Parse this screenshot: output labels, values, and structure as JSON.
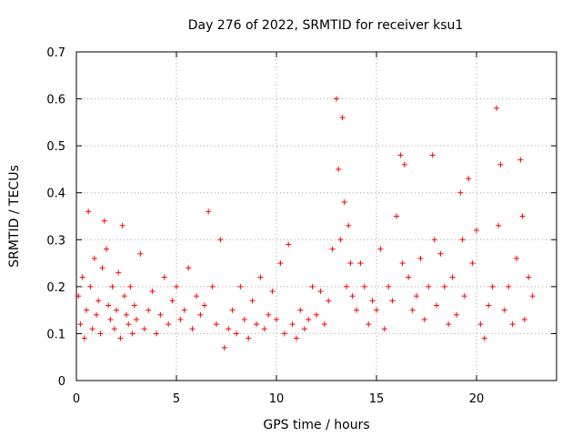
{
  "chart_data": {
    "type": "scatter",
    "title": "Day 276 of 2022, SRMTID for receiver ksu1",
    "xlabel": "GPS time / hours",
    "ylabel": "SRMTID / TECUs",
    "xlim": [
      0,
      24
    ],
    "ylim": [
      0,
      0.7
    ],
    "xticks": [
      0,
      5,
      10,
      15,
      20
    ],
    "xtick_labels": [
      "0",
      "5",
      "10",
      "15",
      "20"
    ],
    "yticks": [
      0,
      0.1,
      0.2,
      0.3,
      0.4,
      0.5,
      0.6,
      0.7
    ],
    "ytick_labels": [
      "0",
      "0.1",
      "0.2",
      "0.3",
      "0.4",
      "0.5",
      "0.6",
      "0.7"
    ],
    "grid": true,
    "marker": "+",
    "color": "#ff0000",
    "series": [
      {
        "name": "SRMTID",
        "x": [
          0.1,
          0.2,
          0.3,
          0.4,
          0.5,
          0.6,
          0.7,
          0.8,
          0.9,
          1.0,
          1.1,
          1.2,
          1.3,
          1.4,
          1.5,
          1.6,
          1.7,
          1.8,
          1.9,
          2.0,
          2.1,
          2.2,
          2.3,
          2.4,
          2.5,
          2.6,
          2.7,
          2.8,
          2.9,
          3.0,
          3.2,
          3.4,
          3.6,
          3.8,
          4.0,
          4.2,
          4.4,
          4.6,
          4.8,
          5.0,
          5.2,
          5.4,
          5.6,
          5.8,
          6.0,
          6.2,
          6.4,
          6.6,
          6.8,
          7.0,
          7.2,
          7.4,
          7.6,
          7.8,
          8.0,
          8.2,
          8.4,
          8.6,
          8.8,
          9.0,
          9.2,
          9.4,
          9.6,
          9.8,
          10.0,
          10.2,
          10.4,
          10.6,
          10.8,
          11.0,
          11.2,
          11.4,
          11.6,
          11.8,
          12.0,
          12.2,
          12.4,
          12.6,
          12.8,
          13.0,
          13.1,
          13.2,
          13.3,
          13.4,
          13.5,
          13.6,
          13.7,
          13.8,
          14.0,
          14.2,
          14.4,
          14.6,
          14.8,
          15.0,
          15.2,
          15.4,
          15.6,
          15.8,
          16.0,
          16.2,
          16.3,
          16.4,
          16.6,
          16.8,
          17.0,
          17.2,
          17.4,
          17.6,
          17.8,
          17.9,
          18.0,
          18.2,
          18.4,
          18.6,
          18.8,
          19.0,
          19.2,
          19.3,
          19.4,
          19.6,
          19.8,
          20.0,
          20.2,
          20.4,
          20.6,
          20.8,
          21.0,
          21.1,
          21.2,
          21.4,
          21.6,
          21.8,
          22.0,
          22.2,
          22.3,
          22.4,
          22.6,
          22.8
        ],
        "y": [
          0.18,
          0.12,
          0.22,
          0.09,
          0.15,
          0.36,
          0.2,
          0.11,
          0.26,
          0.14,
          0.17,
          0.1,
          0.24,
          0.34,
          0.28,
          0.16,
          0.13,
          0.2,
          0.11,
          0.15,
          0.23,
          0.09,
          0.33,
          0.18,
          0.14,
          0.12,
          0.2,
          0.1,
          0.16,
          0.13,
          0.27,
          0.11,
          0.15,
          0.19,
          0.1,
          0.14,
          0.22,
          0.12,
          0.17,
          0.2,
          0.13,
          0.15,
          0.24,
          0.11,
          0.18,
          0.14,
          0.16,
          0.36,
          0.2,
          0.12,
          0.3,
          0.07,
          0.11,
          0.15,
          0.1,
          0.2,
          0.13,
          0.09,
          0.17,
          0.12,
          0.22,
          0.11,
          0.14,
          0.19,
          0.13,
          0.25,
          0.1,
          0.29,
          0.12,
          0.09,
          0.15,
          0.11,
          0.13,
          0.2,
          0.14,
          0.19,
          0.12,
          0.17,
          0.28,
          0.6,
          0.45,
          0.3,
          0.56,
          0.38,
          0.2,
          0.33,
          0.25,
          0.18,
          0.15,
          0.25,
          0.2,
          0.12,
          0.17,
          0.15,
          0.28,
          0.11,
          0.2,
          0.17,
          0.35,
          0.48,
          0.25,
          0.46,
          0.22,
          0.15,
          0.18,
          0.26,
          0.13,
          0.2,
          0.48,
          0.3,
          0.16,
          0.27,
          0.2,
          0.12,
          0.22,
          0.14,
          0.4,
          0.3,
          0.18,
          0.43,
          0.25,
          0.32,
          0.12,
          0.09,
          0.16,
          0.2,
          0.58,
          0.33,
          0.46,
          0.15,
          0.2,
          0.12,
          0.26,
          0.47,
          0.35,
          0.13,
          0.22,
          0.18
        ]
      }
    ]
  }
}
